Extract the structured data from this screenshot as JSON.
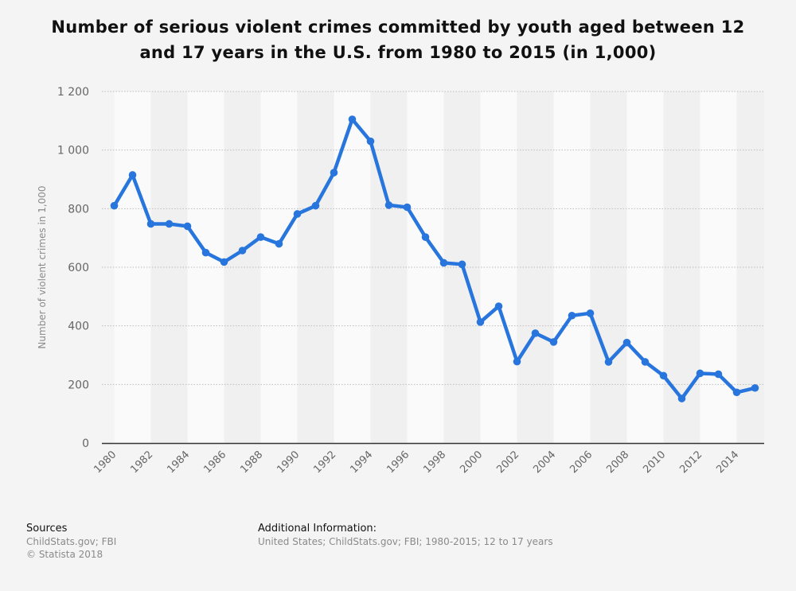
{
  "chart_data": {
    "type": "line",
    "title": "Number of serious violent crimes committed by youth aged between 12 and 17 years in the U.S. from 1980 to 2015 (in 1,000)",
    "ylabel": "Number of violent crimes in 1,000",
    "xlabel": "",
    "ylim": [
      0,
      1200
    ],
    "yticks": [
      0,
      200,
      400,
      600,
      800,
      1000,
      1200
    ],
    "ytick_labels": [
      "0",
      "200",
      "400",
      "600",
      "800",
      "1 000",
      "1 200"
    ],
    "xtick_labels": [
      "1980",
      "1982",
      "1984",
      "1986",
      "1988",
      "1990",
      "1992",
      "1994",
      "1996",
      "1998",
      "2000",
      "2002",
      "2004",
      "2006",
      "2008",
      "2010",
      "2012",
      "2014"
    ],
    "x": [
      1980,
      1981,
      1982,
      1983,
      1984,
      1985,
      1986,
      1987,
      1988,
      1989,
      1990,
      1991,
      1992,
      1993,
      1994,
      1995,
      1996,
      1997,
      1998,
      1999,
      2000,
      2001,
      2002,
      2003,
      2004,
      2005,
      2006,
      2007,
      2008,
      2009,
      2010,
      2011,
      2012,
      2013,
      2014,
      2015
    ],
    "series": [
      {
        "values": [
          810,
          915,
          748,
          748,
          740,
          650,
          618,
          657,
          703,
          680,
          782,
          810,
          923,
          1105,
          1030,
          812,
          805,
          703,
          615,
          610,
          413,
          467,
          278,
          375,
          345,
          435,
          443,
          277,
          343,
          277,
          230,
          152,
          238,
          235,
          173,
          188
        ]
      }
    ],
    "grid": true,
    "legend": "none",
    "line_color": "#2876dd"
  },
  "footer": {
    "sources_heading": "Sources",
    "sources_line1": "ChildStats.gov; FBI",
    "sources_line2": "© Statista 2018",
    "additional_heading": "Additional Information:",
    "additional_text": "United States; ChildStats.gov; FBI; 1980-2015; 12 to 17 years"
  }
}
